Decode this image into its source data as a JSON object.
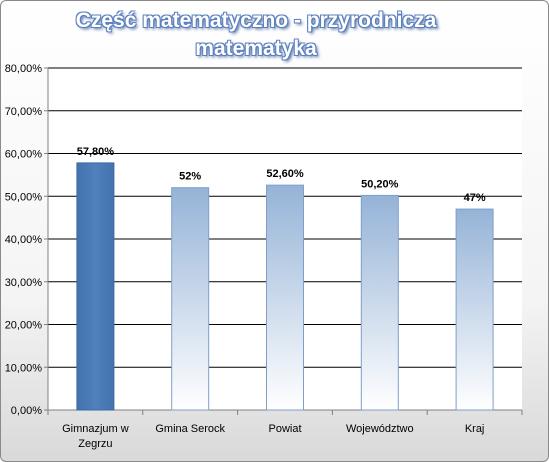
{
  "chart_data": {
    "type": "bar",
    "title": [
      "Część matematyczno - przyrodnicza",
      "matematyka"
    ],
    "categories": [
      [
        "Gimnazjum w",
        "Zegrzu"
      ],
      [
        "Gmina Serock"
      ],
      [
        "Powiat"
      ],
      [
        "Województwo"
      ],
      [
        "Kraj"
      ]
    ],
    "values": [
      57.8,
      52,
      52.6,
      50.2,
      47
    ],
    "data_labels": [
      "57,80%",
      "52%",
      "52,60%",
      "50,20%",
      "47%"
    ],
    "ylim": [
      0,
      80
    ],
    "yticks": [
      0,
      10,
      20,
      30,
      40,
      50,
      60,
      70,
      80
    ],
    "ytick_labels": [
      "0,00%",
      "10,00%",
      "20,00%",
      "30,00%",
      "40,00%",
      "50,00%",
      "60,00%",
      "70,00%",
      "80,00%"
    ],
    "grid": true,
    "highlight_index": 0,
    "colors": {
      "highlight": "#4f81bd",
      "bar_top": "#95b3d7",
      "bar_bottom": "#ffffff",
      "bar_stroke": "#7f9fc9",
      "gridline": "#000000",
      "title_fill": "#ffffff",
      "title_outline": "#5a7fbf"
    }
  }
}
